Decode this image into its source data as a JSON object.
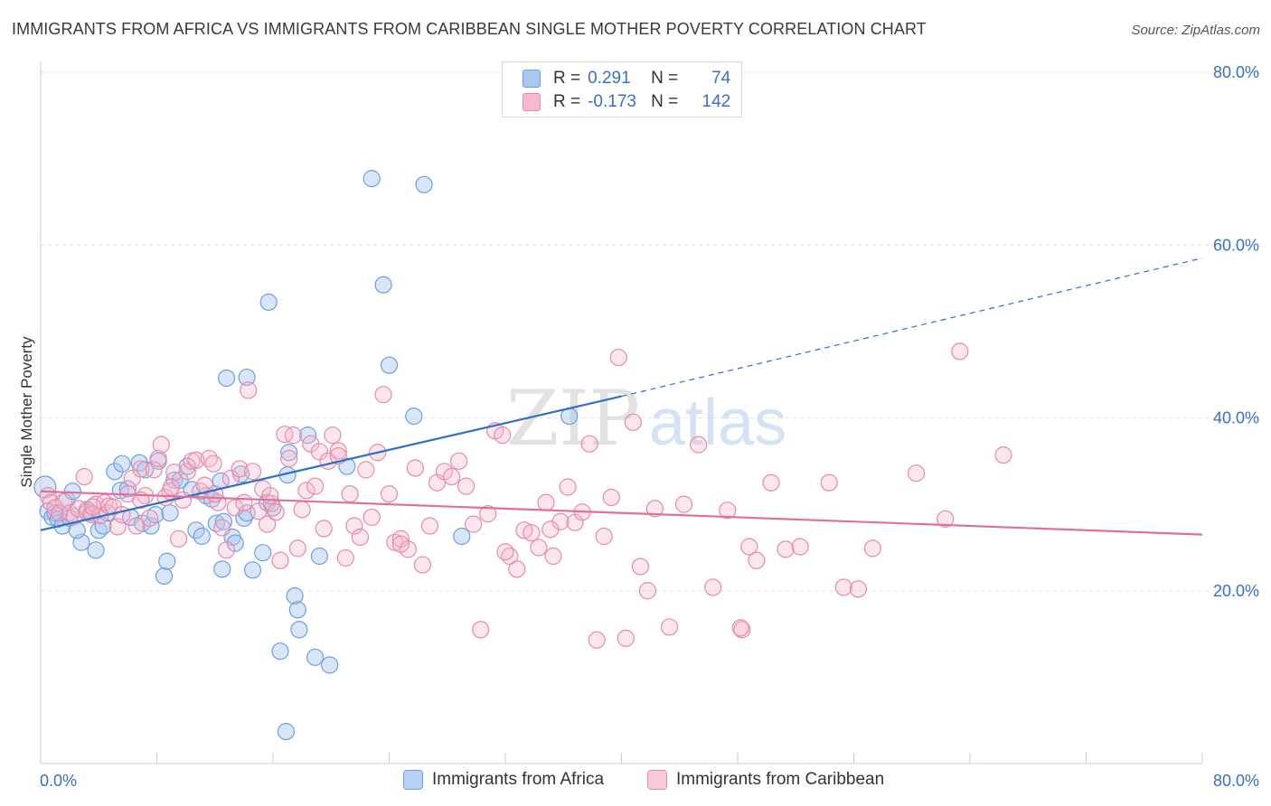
{
  "title": "IMMIGRANTS FROM AFRICA VS IMMIGRANTS FROM CARIBBEAN SINGLE MOTHER POVERTY CORRELATION CHART",
  "source": "Source: ZipAtlas.com",
  "watermark": {
    "part1": "ZIP",
    "part2": "atlas"
  },
  "stats": [
    {
      "r_label": "R =",
      "r_value": "0.291",
      "n_label": "N =",
      "n_value": "74",
      "color": "#a9c8f0",
      "border": "#6d9fe0"
    },
    {
      "r_label": "R =",
      "r_value": "-0.173",
      "n_label": "N =",
      "n_value": "142",
      "color": "#f6b8cc",
      "border": "#e88aa9"
    }
  ],
  "legend": [
    {
      "label": "Immigrants from Africa",
      "color": "#b9d2f3",
      "border": "#6d9fe0"
    },
    {
      "label": "Immigrants from Caribbean",
      "color": "#f8c9d7",
      "border": "#e88aa9"
    }
  ],
  "chart_data": {
    "type": "scatter",
    "title": "IMMIGRANTS FROM AFRICA VS IMMIGRANTS FROM CARIBBEAN SINGLE MOTHER POVERTY CORRELATION CHART",
    "xlabel": "",
    "ylabel": "Single Mother Poverty",
    "xlim": [
      0,
      80
    ],
    "ylim": [
      0,
      80
    ],
    "x_tick_labels": [
      "0.0%",
      "80.0%"
    ],
    "y_ticks": [
      20,
      40,
      60,
      80
    ],
    "y_tick_labels": [
      "20.0%",
      "40.0%",
      "60.0%",
      "80.0%"
    ],
    "grid": "horizontal dashed",
    "legend_position": "bottom",
    "series": [
      {
        "name": "Immigrants from Africa",
        "color": "#6d9fe0",
        "fill": "rgba(169,200,240,0.45)",
        "trend": {
          "x0": 0,
          "y0": 27.0,
          "x1": 40,
          "y1": 42.5,
          "dashed_to_x": 80,
          "dashed_to_y": 58.5,
          "color": "#2f6fcc"
        },
        "points": [
          [
            0.3,
            32.0
          ],
          [
            0.5,
            29.2
          ],
          [
            0.8,
            28.5
          ],
          [
            1.0,
            29.0
          ],
          [
            1.2,
            28.3
          ],
          [
            1.5,
            27.5
          ],
          [
            1.8,
            30.5
          ],
          [
            2.0,
            28.4
          ],
          [
            2.2,
            31.5
          ],
          [
            2.8,
            25.6
          ],
          [
            3.2,
            29.4
          ],
          [
            3.5,
            29.0
          ],
          [
            3.8,
            24.7
          ],
          [
            4.0,
            27.0
          ],
          [
            4.3,
            27.5
          ],
          [
            4.6,
            29.0
          ],
          [
            5.1,
            33.8
          ],
          [
            5.5,
            31.6
          ],
          [
            5.6,
            34.7
          ],
          [
            6.0,
            31.8
          ],
          [
            6.2,
            28.5
          ],
          [
            6.8,
            34.8
          ],
          [
            7.0,
            27.8
          ],
          [
            7.2,
            34.0
          ],
          [
            7.6,
            27.5
          ],
          [
            7.9,
            28.8
          ],
          [
            8.1,
            35.0
          ],
          [
            8.5,
            21.7
          ],
          [
            8.7,
            23.4
          ],
          [
            8.9,
            29.0
          ],
          [
            9.2,
            32.8
          ],
          [
            9.6,
            32.8
          ],
          [
            10.1,
            34.4
          ],
          [
            10.4,
            31.7
          ],
          [
            10.7,
            27.0
          ],
          [
            11.1,
            26.3
          ],
          [
            11.4,
            31.0
          ],
          [
            11.8,
            30.6
          ],
          [
            12.1,
            27.8
          ],
          [
            12.4,
            32.7
          ],
          [
            12.6,
            28.0
          ],
          [
            12.5,
            22.5
          ],
          [
            12.8,
            44.6
          ],
          [
            13.2,
            26.2
          ],
          [
            13.4,
            25.5
          ],
          [
            13.8,
            33.5
          ],
          [
            14.0,
            28.4
          ],
          [
            14.2,
            44.7
          ],
          [
            14.6,
            22.4
          ],
          [
            15.3,
            24.4
          ],
          [
            15.6,
            30.2
          ],
          [
            15.7,
            53.4
          ],
          [
            16.0,
            29.6
          ],
          [
            16.5,
            13.0
          ],
          [
            17.0,
            33.4
          ],
          [
            17.1,
            36.0
          ],
          [
            17.5,
            19.4
          ],
          [
            17.7,
            17.8
          ],
          [
            17.8,
            15.5
          ],
          [
            18.4,
            38.0
          ],
          [
            18.9,
            12.3
          ],
          [
            19.2,
            24.0
          ],
          [
            19.9,
            11.4
          ],
          [
            16.9,
            3.7
          ],
          [
            21.1,
            34.4
          ],
          [
            22.8,
            67.7
          ],
          [
            23.6,
            55.4
          ],
          [
            24.0,
            46.1
          ],
          [
            25.7,
            40.2
          ],
          [
            26.4,
            67.0
          ],
          [
            29.0,
            26.3
          ],
          [
            36.4,
            40.2
          ],
          [
            2.5,
            27.0
          ],
          [
            14.2,
            29.0
          ]
        ]
      },
      {
        "name": "Immigrants from Caribbean",
        "color": "#e88aa9",
        "fill": "rgba(246,184,204,0.35)",
        "trend": {
          "x0": 0,
          "y0": 31.5,
          "x1": 80,
          "y1": 26.5,
          "color": "#e0709a"
        },
        "points": [
          [
            0.5,
            31.0
          ],
          [
            0.7,
            30.2
          ],
          [
            1.0,
            29.6
          ],
          [
            1.3,
            29.0
          ],
          [
            1.6,
            30.3
          ],
          [
            2.0,
            29.0
          ],
          [
            2.3,
            28.6
          ],
          [
            2.6,
            29.5
          ],
          [
            3.0,
            33.2
          ],
          [
            3.2,
            29.1
          ],
          [
            3.5,
            28.8
          ],
          [
            3.8,
            30.0
          ],
          [
            4.1,
            28.7
          ],
          [
            4.4,
            30.2
          ],
          [
            4.7,
            29.8
          ],
          [
            5.0,
            29.7
          ],
          [
            5.3,
            27.4
          ],
          [
            5.6,
            28.8
          ],
          [
            6.0,
            31.2
          ],
          [
            6.3,
            33.0
          ],
          [
            6.6,
            27.5
          ],
          [
            6.9,
            34.1
          ],
          [
            7.2,
            31.0
          ],
          [
            7.5,
            28.4
          ],
          [
            7.8,
            34.0
          ],
          [
            8.1,
            35.3
          ],
          [
            8.3,
            36.9
          ],
          [
            8.6,
            30.8
          ],
          [
            8.9,
            31.5
          ],
          [
            9.2,
            33.7
          ],
          [
            9.5,
            26.0
          ],
          [
            9.8,
            30.5
          ],
          [
            10.1,
            33.8
          ],
          [
            10.4,
            35.0
          ],
          [
            10.7,
            35.1
          ],
          [
            11.0,
            31.5
          ],
          [
            11.3,
            32.2
          ],
          [
            11.6,
            35.3
          ],
          [
            11.9,
            34.7
          ],
          [
            12.2,
            30.2
          ],
          [
            12.5,
            27.3
          ],
          [
            12.8,
            24.7
          ],
          [
            13.1,
            33.0
          ],
          [
            13.4,
            29.6
          ],
          [
            13.7,
            34.1
          ],
          [
            14.0,
            30.2
          ],
          [
            14.3,
            43.2
          ],
          [
            14.6,
            33.8
          ],
          [
            15.0,
            29.2
          ],
          [
            15.3,
            31.8
          ],
          [
            15.6,
            27.7
          ],
          [
            15.9,
            30.1
          ],
          [
            16.2,
            29.1
          ],
          [
            16.5,
            23.5
          ],
          [
            16.8,
            38.1
          ],
          [
            17.1,
            35.3
          ],
          [
            17.4,
            38.0
          ],
          [
            17.7,
            24.9
          ],
          [
            18.0,
            29.4
          ],
          [
            18.3,
            31.6
          ],
          [
            18.6,
            37.0
          ],
          [
            18.9,
            32.1
          ],
          [
            19.2,
            36.1
          ],
          [
            19.5,
            27.2
          ],
          [
            19.8,
            35.0
          ],
          [
            20.1,
            38.0
          ],
          [
            20.5,
            36.2
          ],
          [
            21.0,
            23.8
          ],
          [
            21.3,
            31.2
          ],
          [
            21.6,
            27.5
          ],
          [
            22.0,
            26.2
          ],
          [
            22.4,
            34.0
          ],
          [
            22.8,
            28.5
          ],
          [
            23.2,
            36.0
          ],
          [
            23.6,
            42.7
          ],
          [
            24.0,
            31.2
          ],
          [
            24.4,
            25.6
          ],
          [
            24.8,
            26.0
          ],
          [
            25.3,
            24.8
          ],
          [
            25.8,
            34.2
          ],
          [
            26.3,
            23.0
          ],
          [
            26.8,
            27.5
          ],
          [
            27.3,
            32.5
          ],
          [
            27.8,
            33.8
          ],
          [
            28.3,
            33.2
          ],
          [
            28.8,
            35.0
          ],
          [
            29.3,
            32.1
          ],
          [
            29.8,
            27.7
          ],
          [
            30.3,
            15.5
          ],
          [
            30.8,
            28.9
          ],
          [
            31.3,
            38.5
          ],
          [
            31.8,
            38.0
          ],
          [
            32.3,
            24.0
          ],
          [
            32.8,
            22.5
          ],
          [
            33.3,
            27.0
          ],
          [
            33.8,
            26.7
          ],
          [
            34.3,
            25.0
          ],
          [
            34.8,
            30.2
          ],
          [
            35.3,
            24.0
          ],
          [
            35.8,
            28.0
          ],
          [
            36.3,
            32.0
          ],
          [
            36.8,
            27.9
          ],
          [
            37.3,
            29.1
          ],
          [
            37.8,
            37.0
          ],
          [
            38.3,
            14.3
          ],
          [
            38.8,
            26.3
          ],
          [
            39.3,
            30.8
          ],
          [
            39.8,
            47.0
          ],
          [
            40.3,
            14.5
          ],
          [
            40.8,
            39.5
          ],
          [
            41.3,
            22.8
          ],
          [
            41.8,
            20.0
          ],
          [
            42.3,
            29.5
          ],
          [
            43.3,
            15.8
          ],
          [
            44.3,
            30.0
          ],
          [
            45.3,
            36.9
          ],
          [
            46.3,
            20.4
          ],
          [
            47.3,
            29.3
          ],
          [
            48.3,
            15.5
          ],
          [
            48.8,
            25.1
          ],
          [
            49.3,
            23.5
          ],
          [
            50.3,
            32.5
          ],
          [
            51.3,
            24.8
          ],
          [
            52.3,
            25.1
          ],
          [
            54.3,
            32.5
          ],
          [
            55.3,
            20.4
          ],
          [
            56.3,
            20.2
          ],
          [
            57.3,
            24.9
          ],
          [
            60.3,
            33.6
          ],
          [
            62.3,
            28.3
          ],
          [
            63.3,
            47.7
          ],
          [
            66.3,
            35.7
          ],
          [
            15.8,
            31.0
          ],
          [
            24.8,
            25.4
          ],
          [
            12.0,
            31.2
          ],
          [
            3.6,
            29.7
          ],
          [
            6.9,
            30.5
          ],
          [
            48.2,
            15.7
          ],
          [
            32.0,
            24.5
          ],
          [
            20.5,
            35.6
          ],
          [
            35.1,
            27.1
          ],
          [
            9.0,
            32.0
          ]
        ]
      }
    ]
  }
}
